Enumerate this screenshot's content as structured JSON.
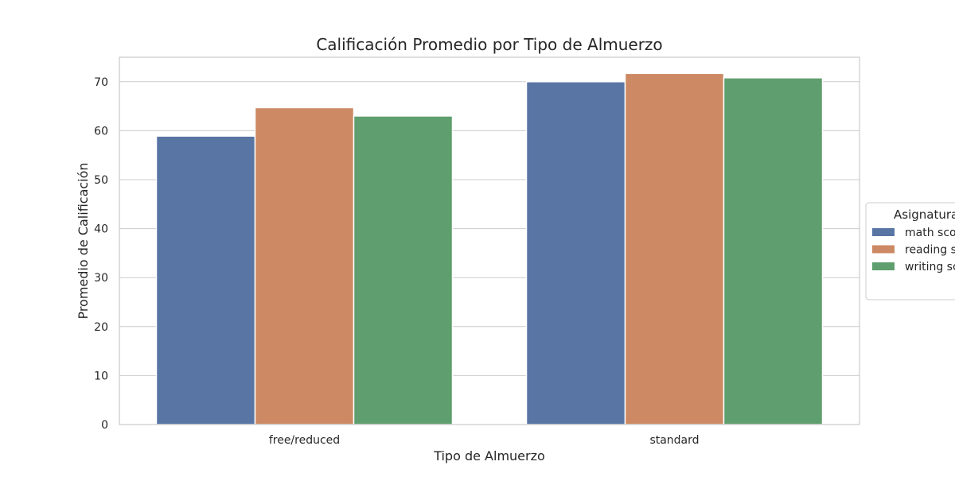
{
  "chart_data": {
    "type": "bar",
    "title": "Calificación Promedio por Tipo de Almuerzo",
    "xlabel": "Tipo de Almuerzo",
    "ylabel": "Promedio de Calificación",
    "categories": [
      "free/reduced",
      "standard"
    ],
    "series": [
      {
        "name": "math score",
        "values": [
          58.9,
          70.0
        ],
        "color": "#5875a4"
      },
      {
        "name": "reading score",
        "values": [
          64.7,
          71.7
        ],
        "color": "#cc8963"
      },
      {
        "name": "writing score",
        "values": [
          63.0,
          70.8
        ],
        "color": "#5f9e6e"
      }
    ],
    "ylim": [
      0,
      75
    ],
    "yticks": [
      0,
      10,
      20,
      30,
      40,
      50,
      60,
      70
    ],
    "grid": true,
    "legend": {
      "title": "Asignatura",
      "placement": "center-right, outside"
    }
  }
}
